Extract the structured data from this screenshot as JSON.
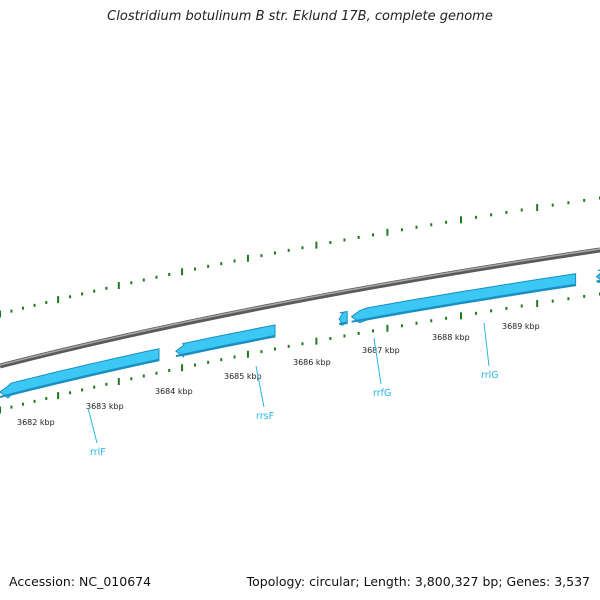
{
  "title": "Clostridium botulinum B str. Eklund 17B, complete genome",
  "footer": {
    "accession": "Accession: NC_010674",
    "stats": "Topology: circular; Length: 3,800,327 bp; Genes: 3,537"
  },
  "colors": {
    "backbone": "#7a7a7a",
    "gene_fill": "#3cc8f4",
    "gene_edge": "#1a8fc0",
    "gene_label": "#29b6e8",
    "tick": "#1f7a1f"
  },
  "scale": {
    "unit": "kbp",
    "labels": [
      "3682 kbp",
      "3683 kbp",
      "3684 kbp",
      "3685 kbp",
      "3686 kbp",
      "3687 kbp",
      "3688 kbp",
      "3689 kbp"
    ]
  },
  "genes": [
    {
      "name": "rrlF",
      "strand": "reverse"
    },
    {
      "name": "rrsF",
      "strand": "reverse"
    },
    {
      "name": "rrfG",
      "strand": "reverse"
    },
    {
      "name": "rrlG",
      "strand": "reverse"
    }
  ]
}
